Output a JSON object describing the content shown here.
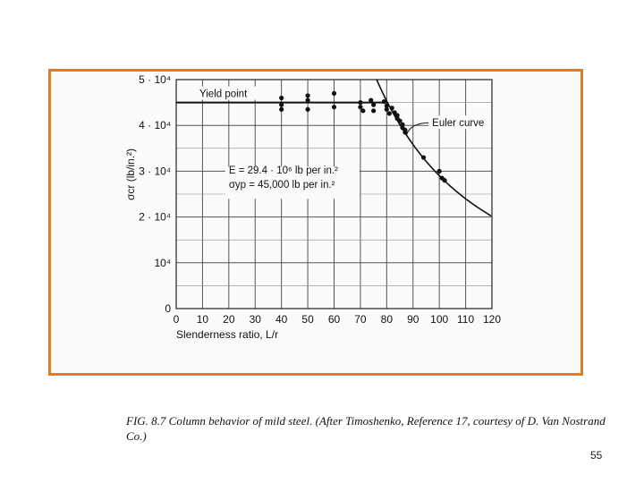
{
  "slide": {
    "page_number": "55",
    "frame_color": "#e07b2a"
  },
  "figure": {
    "caption": "FIG. 8.7 Column behavior of mild steel. (After Timoshenko, Reference 17, courtesy of D. Van Nostrand Co.)"
  },
  "chart_data": {
    "type": "scatter",
    "title": "",
    "xlabel": "Slenderness ratio, L/r",
    "ylabel": "σcr (lb/in.²)",
    "xlim": [
      0,
      120
    ],
    "ylim": [
      0,
      50000
    ],
    "x_ticks": [
      "0",
      "10",
      "20",
      "30",
      "40",
      "50",
      "60",
      "70",
      "80",
      "90",
      "100",
      "110",
      "120"
    ],
    "y_ticks": [
      {
        "value": 0,
        "label": "0"
      },
      {
        "value": 10000,
        "label": "10⁴"
      },
      {
        "value": 20000,
        "label": "2 · 10⁴"
      },
      {
        "value": 30000,
        "label": "3 · 10⁴"
      },
      {
        "value": 40000,
        "label": "4 · 10⁴"
      },
      {
        "value": 50000,
        "label": "5 · 10⁴"
      }
    ],
    "grid": true,
    "yield_point": {
      "label": "Yield point",
      "value": 45000
    },
    "euler_curve": {
      "label": "Euler curve",
      "E": 29400000,
      "x_range": [
        80,
        120
      ]
    },
    "annotation_lines": [
      "E = 29.4 · 10⁶ lb per in.²",
      "σyp = 45,000 lb per in.²"
    ],
    "series": [
      {
        "points": [
          [
            40,
            46000
          ],
          [
            40,
            44500
          ],
          [
            40,
            43500
          ],
          [
            50,
            46500
          ],
          [
            50,
            45500
          ],
          [
            50,
            43500
          ],
          [
            60,
            47000
          ],
          [
            60,
            44000
          ],
          [
            70,
            45000
          ],
          [
            70,
            44000
          ],
          [
            71,
            43200
          ],
          [
            74,
            45500
          ],
          [
            75,
            44500
          ],
          [
            75,
            43200
          ],
          [
            79,
            45200
          ],
          [
            80,
            44300
          ],
          [
            80,
            43500
          ],
          [
            81,
            42600
          ],
          [
            82,
            43800
          ],
          [
            83,
            42800
          ],
          [
            84,
            42200
          ],
          [
            84,
            41500
          ],
          [
            85,
            41000
          ],
          [
            86,
            40200
          ],
          [
            86,
            39500
          ],
          [
            87,
            38500
          ],
          [
            87,
            39000
          ],
          [
            94,
            33000
          ],
          [
            100,
            30000
          ],
          [
            101,
            28500
          ],
          [
            102,
            28000
          ]
        ]
      }
    ]
  }
}
